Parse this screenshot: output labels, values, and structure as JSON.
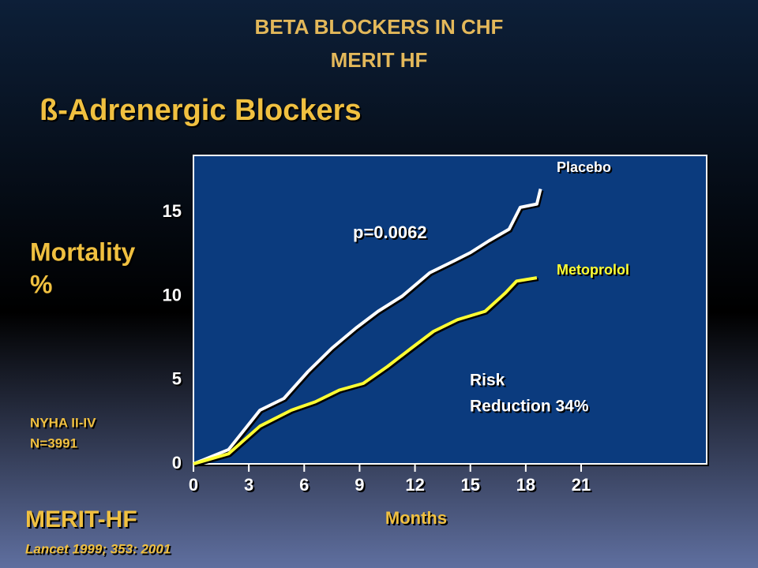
{
  "chart_data": {
    "type": "line",
    "header": [
      "BETA BLOCKERS IN CHF",
      "MERIT HF"
    ],
    "title": "ß-Adrenergic Blockers",
    "ylabel": [
      "Mortality",
      "%"
    ],
    "xlabel": "Months",
    "note": [
      "NYHA II-IV",
      "N=3991"
    ],
    "annotation_p": "p=0.0062",
    "annotation_risk": [
      "Risk",
      "Reduction 34%"
    ],
    "source": "MERIT-HF",
    "citation": "Lancet 1999; 353: 2001",
    "xlim": [
      0,
      27.8
    ],
    "ylim": [
      0,
      18.4
    ],
    "xticks": [
      0,
      3,
      6,
      9,
      12,
      15,
      18,
      21
    ],
    "yticks": [
      0,
      5,
      10,
      15
    ],
    "grid": false,
    "series": [
      {
        "name": "Placebo",
        "color": "#ffffff",
        "x": [
          0,
          1.9,
          3.6,
          4.9,
          6.2,
          7.5,
          8.8,
          10,
          11.3,
          12.8,
          14.1,
          15,
          16,
          17.1,
          17.7,
          18.6,
          18.8
        ],
        "values": [
          0,
          0.85,
          3.2,
          3.9,
          5.5,
          6.9,
          8.1,
          9.1,
          10,
          11.4,
          12.1,
          12.6,
          13.3,
          14,
          15.3,
          15.5,
          16.4
        ]
      },
      {
        "name": "Metoprolol",
        "color": "#ffff33",
        "x": [
          0,
          1.9,
          3.6,
          5.3,
          6.6,
          7.9,
          9.2,
          10.5,
          11.8,
          13,
          14.3,
          15.8,
          16.9,
          17.5,
          18.6
        ],
        "values": [
          0,
          0.6,
          2.25,
          3.2,
          3.7,
          4.4,
          4.8,
          5.8,
          6.9,
          7.9,
          8.6,
          9.1,
          10.2,
          10.9,
          11.1
        ]
      }
    ]
  }
}
